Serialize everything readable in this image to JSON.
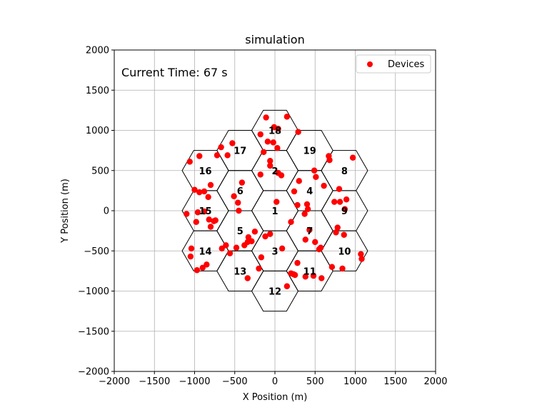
{
  "chart_data": {
    "type": "scatter",
    "title": "simulation",
    "xlabel": "X Position (m)",
    "ylabel": "Y Position (m)",
    "xlim": [
      -2000,
      2000
    ],
    "ylim": [
      -2000,
      2000
    ],
    "xticks": [
      -2000,
      -1500,
      -1000,
      -500,
      0,
      500,
      1000,
      1500,
      2000
    ],
    "yticks": [
      -2000,
      -1500,
      -1000,
      -500,
      0,
      500,
      1000,
      1500,
      2000
    ],
    "grid": true,
    "legend": {
      "placement": "top-right",
      "entries": [
        "Devices"
      ]
    },
    "annotation": "Current Time: 67 s",
    "colors": {
      "devices": "#ff0000",
      "cells": "#000000",
      "grid": "#b0b0b0"
    },
    "cell_radius": 289,
    "cells": [
      {
        "id": "1",
        "x": 0,
        "y": 0
      },
      {
        "id": "2",
        "x": 0,
        "y": 500
      },
      {
        "id": "3",
        "x": 0,
        "y": -500
      },
      {
        "id": "4",
        "x": 433,
        "y": 250
      },
      {
        "id": "5",
        "x": -433,
        "y": -250
      },
      {
        "id": "6",
        "x": -433,
        "y": 250
      },
      {
        "id": "7",
        "x": 433,
        "y": -250
      },
      {
        "id": "8",
        "x": 866,
        "y": 500
      },
      {
        "id": "9",
        "x": 866,
        "y": 0
      },
      {
        "id": "10",
        "x": 866,
        "y": -500
      },
      {
        "id": "11",
        "x": 433,
        "y": -750
      },
      {
        "id": "12",
        "x": 0,
        "y": -1000
      },
      {
        "id": "13",
        "x": -433,
        "y": -750
      },
      {
        "id": "14",
        "x": -866,
        "y": -500
      },
      {
        "id": "15",
        "x": -866,
        "y": 0
      },
      {
        "id": "16",
        "x": -866,
        "y": 500
      },
      {
        "id": "17",
        "x": -433,
        "y": 750
      },
      {
        "id": "18",
        "x": 0,
        "y": 1000
      },
      {
        "id": "19",
        "x": 433,
        "y": 750
      }
    ],
    "series": [
      {
        "name": "Devices",
        "points": [
          [
            -1060,
            610
          ],
          [
            -1000,
            260
          ],
          [
            -940,
            680
          ],
          [
            -940,
            230
          ],
          [
            -880,
            240
          ],
          [
            -830,
            170
          ],
          [
            -800,
            320
          ],
          [
            -720,
            690
          ],
          [
            -670,
            790
          ],
          [
            -590,
            690
          ],
          [
            -530,
            840
          ],
          [
            -510,
            180
          ],
          [
            -460,
            100
          ],
          [
            -410,
            350
          ],
          [
            -450,
            0
          ],
          [
            -1100,
            -40
          ],
          [
            -980,
            -140
          ],
          [
            -960,
            -20
          ],
          [
            -880,
            -10
          ],
          [
            -820,
            -110
          ],
          [
            -800,
            -200
          ],
          [
            -760,
            -130
          ],
          [
            -740,
            -120
          ],
          [
            -1040,
            -470
          ],
          [
            -1050,
            -570
          ],
          [
            -970,
            -740
          ],
          [
            -900,
            -710
          ],
          [
            -850,
            -670
          ],
          [
            -660,
            -470
          ],
          [
            -610,
            -430
          ],
          [
            -560,
            -530
          ],
          [
            -480,
            -460
          ],
          [
            -380,
            -430
          ],
          [
            -340,
            -390
          ],
          [
            -330,
            -330
          ],
          [
            -290,
            -380
          ],
          [
            -250,
            -260
          ],
          [
            -170,
            -580
          ],
          [
            -200,
            -720
          ],
          [
            -340,
            -840
          ],
          [
            -180,
            950
          ],
          [
            -110,
            1160
          ],
          [
            -90,
            860
          ],
          [
            -20,
            850
          ],
          [
            -10,
            1040
          ],
          [
            30,
            780
          ],
          [
            40,
            1020
          ],
          [
            150,
            1170
          ],
          [
            290,
            980
          ],
          [
            -140,
            730
          ],
          [
            -180,
            450
          ],
          [
            -60,
            620
          ],
          [
            -60,
            560
          ],
          [
            40,
            470
          ],
          [
            80,
            440
          ],
          [
            20,
            110
          ],
          [
            240,
            240
          ],
          [
            300,
            370
          ],
          [
            280,
            70
          ],
          [
            370,
            -40
          ],
          [
            400,
            80
          ],
          [
            410,
            20
          ],
          [
            200,
            -140
          ],
          [
            380,
            -360
          ],
          [
            430,
            -240
          ],
          [
            490,
            500
          ],
          [
            510,
            420
          ],
          [
            610,
            310
          ],
          [
            670,
            680
          ],
          [
            680,
            630
          ],
          [
            740,
            110
          ],
          [
            800,
            270
          ],
          [
            810,
            110
          ],
          [
            870,
            20
          ],
          [
            890,
            140
          ],
          [
            860,
            -300
          ],
          [
            760,
            -270
          ],
          [
            780,
            -210
          ],
          [
            970,
            660
          ],
          [
            1070,
            -540
          ],
          [
            1080,
            -600
          ],
          [
            500,
            -390
          ],
          [
            570,
            -460
          ],
          [
            550,
            -480
          ],
          [
            710,
            -700
          ],
          [
            840,
            -720
          ],
          [
            580,
            -840
          ],
          [
            480,
            -810
          ],
          [
            380,
            -820
          ],
          [
            280,
            -650
          ],
          [
            250,
            -800
          ],
          [
            230,
            -790
          ],
          [
            200,
            -780
          ],
          [
            150,
            -940
          ],
          [
            90,
            -470
          ],
          [
            -60,
            -290
          ],
          [
            -120,
            -320
          ]
        ]
      }
    ]
  }
}
